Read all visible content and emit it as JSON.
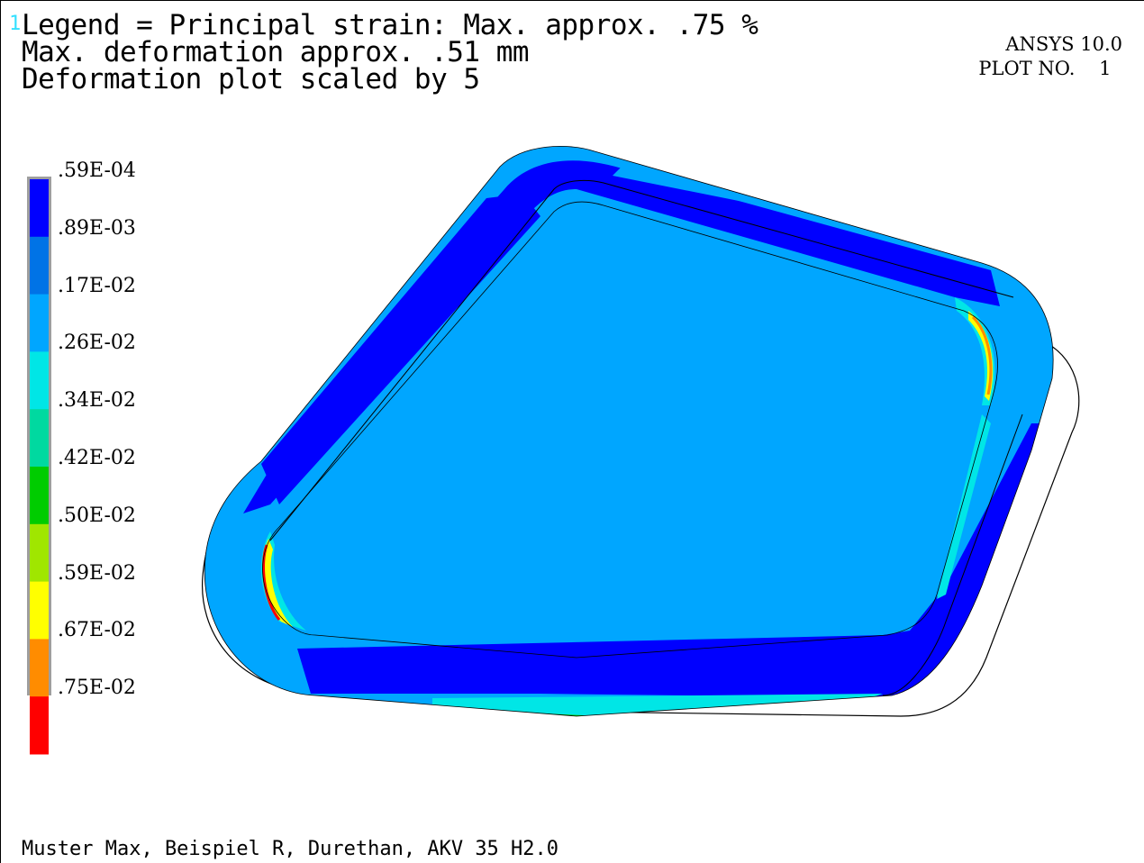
{
  "header": {
    "plot_number": "1",
    "title_lines": [
      "Legend = Principal strain: Max. approx. .75 %",
      "Max. deformation approx. .51 mm",
      "Deformation plot scaled by 5"
    ],
    "ansys_version": "ANSYS 10.0",
    "plot_no_label": "PLOT NO.",
    "plot_no_value": "1"
  },
  "legend": {
    "labels": [
      ".59E-04",
      ".89E-03",
      ".17E-02",
      ".26E-02",
      ".34E-02",
      ".42E-02",
      ".50E-02",
      ".59E-02",
      ".67E-02",
      ".75E-02"
    ],
    "colors": [
      "#0000ff",
      "#0073e6",
      "#00a6ff",
      "#00e6e6",
      "#00d9a0",
      "#00cc00",
      "#a0e600",
      "#ffff00",
      "#ff8c00",
      "#ff0000"
    ]
  },
  "colors": {
    "frame_dark_blue": "#0000ff",
    "frame_mid_blue": "#0073e6",
    "frame_light_blue": "#00a6ff",
    "frame_cyan": "#00e6e6",
    "frame_green": "#00cc00",
    "frame_yellow": "#ffff00",
    "frame_orange": "#ff8c00",
    "frame_red": "#ff0000"
  },
  "footer": {
    "text": "Muster Max, Beispiel R, Durethan, AKV 35 H2.0"
  }
}
